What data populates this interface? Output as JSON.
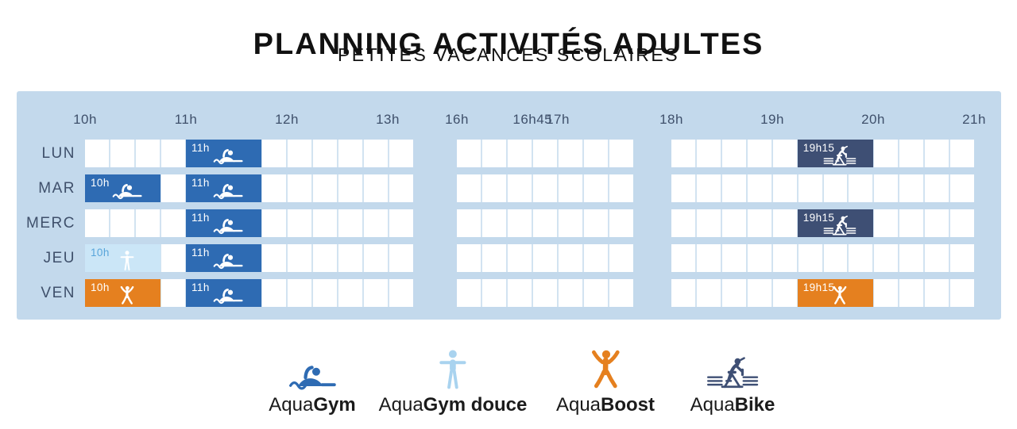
{
  "title": {
    "regular": "PLANNING ACTIVITÉS",
    "bold": "ADULTES",
    "subtitle": "PETITES VACANCES SCOLAIRES"
  },
  "colors": {
    "gym": "#2e6bb3",
    "gymdouce": "#cbe6f7",
    "gymdouce_text": "#58a5da",
    "boost": "#e5801f",
    "bike": "#3e4f74",
    "panel": "#c3d9ec",
    "grid_line": "#d2e3f1",
    "label": "#3f506b",
    "title_text": "#111111",
    "legend_text": "#1b1b1b",
    "legend_douce_icon": "#a9d3ef"
  },
  "days": [
    {
      "id": "lun",
      "label": "LUN"
    },
    {
      "id": "mar",
      "label": "MAR"
    },
    {
      "id": "merc",
      "label": "MERC"
    },
    {
      "id": "jeu",
      "label": "JEU"
    },
    {
      "id": "ven",
      "label": "VEN"
    }
  ],
  "sections": [
    {
      "id": "morning",
      "cells": 13,
      "ticks": [
        {
          "label": "10h",
          "cell": 0
        },
        {
          "label": "11h",
          "cell": 4
        },
        {
          "label": "12h",
          "cell": 8
        },
        {
          "label": "13h",
          "cell": 12
        }
      ]
    },
    {
      "id": "afternoon",
      "cells": 7,
      "ticks": [
        {
          "label": "16h",
          "cell": 0
        },
        {
          "label": "16h45",
          "cell": 3
        },
        {
          "label": "17h",
          "cell": 4
        }
      ]
    },
    {
      "id": "evening",
      "cells": 12,
      "ticks": [
        {
          "label": "18h",
          "cell": 0
        },
        {
          "label": "19h",
          "cell": 4
        },
        {
          "label": "20h",
          "cell": 8
        },
        {
          "label": "21h",
          "cell": 12
        }
      ]
    }
  ],
  "blocks": [
    {
      "day": 0,
      "section": "morning",
      "start": 4,
      "span": 3,
      "time": "11h",
      "activity": "AquaGym",
      "type": "gym",
      "icon": "aquagym-swimmer-icon"
    },
    {
      "day": 0,
      "section": "evening",
      "start": 5,
      "span": 3,
      "time": "19h15",
      "activity": "AquaBike",
      "type": "bike",
      "icon": "aquabike-icon"
    },
    {
      "day": 1,
      "section": "morning",
      "start": 0,
      "span": 3,
      "time": "10h",
      "activity": "AquaGym",
      "type": "gym",
      "icon": "aquagym-swimmer-icon"
    },
    {
      "day": 1,
      "section": "morning",
      "start": 4,
      "span": 3,
      "time": "11h",
      "activity": "AquaGym",
      "type": "gym",
      "icon": "aquagym-swimmer-icon"
    },
    {
      "day": 2,
      "section": "morning",
      "start": 4,
      "span": 3,
      "time": "11h",
      "activity": "AquaGym",
      "type": "gym",
      "icon": "aquagym-swimmer-icon"
    },
    {
      "day": 2,
      "section": "evening",
      "start": 5,
      "span": 3,
      "time": "19h15",
      "activity": "AquaBike",
      "type": "bike",
      "icon": "aquabike-icon"
    },
    {
      "day": 3,
      "section": "morning",
      "start": 0,
      "span": 3,
      "time": "10h",
      "activity": "AquaGym douce",
      "type": "gymdouce",
      "icon": "aquagym-douce-person-icon"
    },
    {
      "day": 3,
      "section": "morning",
      "start": 4,
      "span": 3,
      "time": "11h",
      "activity": "AquaGym",
      "type": "gym",
      "icon": "aquagym-swimmer-icon"
    },
    {
      "day": 4,
      "section": "morning",
      "start": 0,
      "span": 3,
      "time": "10h",
      "activity": "AquaBoost",
      "type": "boost",
      "icon": "aquaboost-jumper-icon"
    },
    {
      "day": 4,
      "section": "morning",
      "start": 4,
      "span": 3,
      "time": "11h",
      "activity": "AquaGym",
      "type": "gym",
      "icon": "aquagym-swimmer-icon"
    },
    {
      "day": 4,
      "section": "evening",
      "start": 5,
      "span": 3,
      "time": "19h15",
      "activity": "AquaBoost",
      "type": "boost",
      "icon": "aquaboost-jumper-icon"
    }
  ],
  "legend": [
    {
      "prefix": "Aqua",
      "bold": "Gym",
      "type": "gym",
      "icon": "aquagym-swimmer-icon"
    },
    {
      "prefix": "Aqua",
      "bold": "Gym douce",
      "type": "gymdouce",
      "icon": "aquagym-douce-person-icon"
    },
    {
      "prefix": "Aqua",
      "bold": "Boost",
      "type": "boost",
      "icon": "aquaboost-jumper-icon"
    },
    {
      "prefix": "Aqua",
      "bold": "Bike",
      "type": "bike",
      "icon": "aquabike-icon"
    }
  ],
  "chart_data": {
    "type": "table",
    "title": "PLANNING ACTIVITÉS ADULTES",
    "subtitle": "PETITES VACANCES SCOLAIRES",
    "rows": [
      "LUN",
      "MAR",
      "MERC",
      "JEU",
      "VEN"
    ],
    "time_ticks": [
      "10h",
      "11h",
      "12h",
      "13h",
      "16h",
      "16h45",
      "17h",
      "18h",
      "19h",
      "20h",
      "21h"
    ],
    "slot_minutes": 15,
    "entries": [
      {
        "day": "LUN",
        "start": "11h",
        "duration_min": 45,
        "activity": "AquaGym"
      },
      {
        "day": "LUN",
        "start": "19h15",
        "duration_min": 45,
        "activity": "AquaBike"
      },
      {
        "day": "MAR",
        "start": "10h",
        "duration_min": 45,
        "activity": "AquaGym"
      },
      {
        "day": "MAR",
        "start": "11h",
        "duration_min": 45,
        "activity": "AquaGym"
      },
      {
        "day": "MERC",
        "start": "11h",
        "duration_min": 45,
        "activity": "AquaGym"
      },
      {
        "day": "MERC",
        "start": "19h15",
        "duration_min": 45,
        "activity": "AquaBike"
      },
      {
        "day": "JEU",
        "start": "10h",
        "duration_min": 45,
        "activity": "AquaGym douce"
      },
      {
        "day": "JEU",
        "start": "11h",
        "duration_min": 45,
        "activity": "AquaGym"
      },
      {
        "day": "VEN",
        "start": "10h",
        "duration_min": 45,
        "activity": "AquaBoost"
      },
      {
        "day": "VEN",
        "start": "11h",
        "duration_min": 45,
        "activity": "AquaGym"
      },
      {
        "day": "VEN",
        "start": "19h15",
        "duration_min": 45,
        "activity": "AquaBoost"
      }
    ],
    "legend": [
      "AquaGym",
      "AquaGym douce",
      "AquaBoost",
      "AquaBike"
    ]
  }
}
